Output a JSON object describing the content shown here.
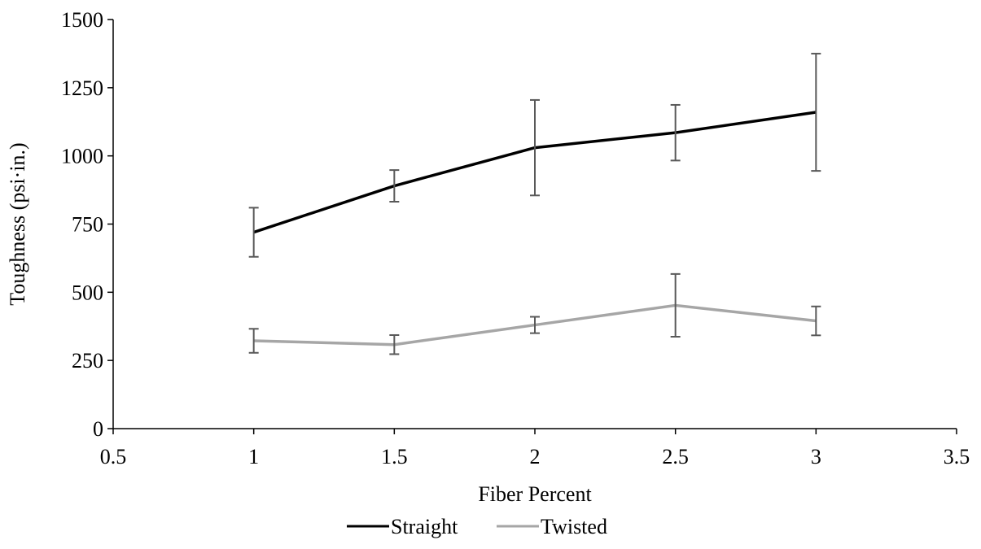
{
  "chart_data": {
    "type": "line",
    "title": "",
    "xlabel": "Fiber Percent",
    "ylabel": "Toughness (psi·in.)",
    "xlim": [
      0.5,
      3.5
    ],
    "ylim": [
      0,
      1500
    ],
    "x_ticks": [
      0.5,
      1,
      1.5,
      2,
      2.5,
      3,
      3.5
    ],
    "x_tick_labels": [
      "0.5",
      "1",
      "1.5",
      "2",
      "2.5",
      "3",
      "3.5"
    ],
    "y_ticks": [
      0,
      250,
      500,
      750,
      1000,
      1250,
      1500
    ],
    "y_tick_labels": [
      "0",
      "250",
      "500",
      "750",
      "1000",
      "1250",
      "1500"
    ],
    "grid": false,
    "legend": {
      "position": "bottom"
    },
    "error_bar_color": "#595959",
    "series": [
      {
        "name": "Straight",
        "color": "#000000",
        "x": [
          1,
          1.5,
          2,
          2.5,
          3
        ],
        "y": [
          720,
          890,
          1030,
          1085,
          1160
        ],
        "error": [
          90,
          58,
          175,
          102,
          215
        ]
      },
      {
        "name": "Twisted",
        "color": "#a6a6a6",
        "x": [
          1,
          1.5,
          2,
          2.5,
          3
        ],
        "y": [
          322,
          308,
          380,
          452,
          395
        ],
        "error": [
          44,
          35,
          30,
          115,
          53
        ]
      }
    ]
  }
}
